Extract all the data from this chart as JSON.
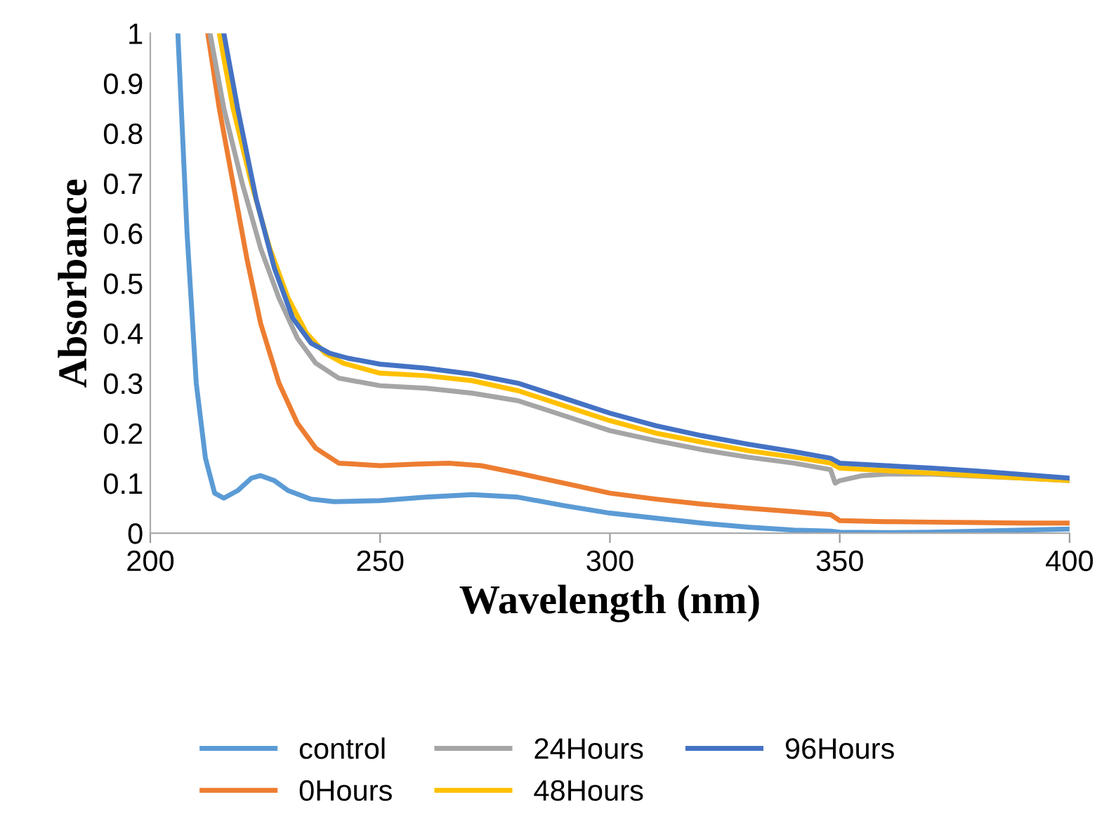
{
  "chart_data": {
    "type": "line",
    "xlabel": "Wavelength (nm)",
    "ylabel": "Absorbance",
    "xlim": [
      200,
      400
    ],
    "ylim": [
      0,
      1
    ],
    "xticks": [
      200,
      250,
      300,
      350,
      400
    ],
    "yticks": [
      0,
      0.1,
      0.2,
      0.3,
      0.4,
      0.5,
      0.6,
      0.7,
      0.8,
      0.9,
      1
    ],
    "grid": false,
    "legend": "bottom",
    "marker": "none",
    "line_style": "solid",
    "series": [
      {
        "name": "control",
        "color": "#5b9bd5",
        "x": [
          206,
          208,
          210,
          212,
          214,
          216,
          219,
          222,
          224,
          227,
          230,
          235,
          240,
          250,
          260,
          270,
          280,
          290,
          300,
          310,
          320,
          330,
          340,
          348,
          350,
          360,
          370,
          380,
          390,
          400
        ],
        "values": [
          1,
          0.6,
          0.3,
          0.15,
          0.08,
          0.07,
          0.085,
          0.11,
          0.115,
          0.105,
          0.085,
          0.068,
          0.063,
          0.065,
          0.072,
          0.077,
          0.072,
          0.055,
          0.04,
          0.03,
          0.02,
          0.012,
          0.006,
          0.004,
          0.002,
          0.001,
          0.002,
          0.004,
          0.006,
          0.008
        ]
      },
      {
        "name": "0Hours",
        "color": "#ed7d31",
        "x": [
          212.5,
          215,
          218,
          221,
          224,
          228,
          232,
          236,
          241,
          250,
          258,
          265,
          272,
          280,
          290,
          300,
          310,
          320,
          330,
          340,
          348,
          350,
          360,
          370,
          380,
          390,
          400
        ],
        "values": [
          1,
          0.85,
          0.7,
          0.55,
          0.42,
          0.3,
          0.22,
          0.17,
          0.14,
          0.135,
          0.138,
          0.14,
          0.135,
          0.12,
          0.1,
          0.08,
          0.068,
          0.058,
          0.05,
          0.043,
          0.037,
          0.025,
          0.023,
          0.022,
          0.021,
          0.02,
          0.02
        ]
      },
      {
        "name": "24Hours",
        "color": "#a5a5a5",
        "x": [
          213,
          216,
          220,
          224,
          228,
          232,
          236,
          241,
          250,
          260,
          270,
          280,
          290,
          300,
          310,
          320,
          330,
          340,
          348,
          349,
          350,
          355,
          360,
          370,
          380,
          390,
          400
        ],
        "values": [
          1,
          0.85,
          0.7,
          0.57,
          0.47,
          0.39,
          0.34,
          0.31,
          0.295,
          0.29,
          0.28,
          0.265,
          0.235,
          0.205,
          0.185,
          0.167,
          0.152,
          0.14,
          0.127,
          0.1,
          0.105,
          0.115,
          0.118,
          0.118,
          0.114,
          0.11,
          0.105
        ]
      },
      {
        "name": "48Hours",
        "color": "#ffc000",
        "x": [
          215,
          218,
          222,
          226,
          230,
          234,
          238,
          242,
          250,
          260,
          270,
          280,
          290,
          300,
          310,
          320,
          330,
          340,
          348,
          350,
          360,
          370,
          380,
          390,
          400
        ],
        "values": [
          1,
          0.85,
          0.7,
          0.57,
          0.47,
          0.4,
          0.36,
          0.34,
          0.32,
          0.315,
          0.305,
          0.285,
          0.255,
          0.225,
          0.2,
          0.182,
          0.165,
          0.152,
          0.14,
          0.13,
          0.125,
          0.12,
          0.115,
          0.11,
          0.105
        ]
      },
      {
        "name": "96Hours",
        "color": "#4472c4",
        "x": [
          216,
          219,
          223,
          227,
          231,
          235,
          239,
          243,
          250,
          260,
          270,
          280,
          290,
          300,
          310,
          320,
          330,
          340,
          348,
          350,
          360,
          370,
          380,
          390,
          400
        ],
        "values": [
          1,
          0.85,
          0.67,
          0.53,
          0.43,
          0.38,
          0.36,
          0.35,
          0.338,
          0.33,
          0.318,
          0.3,
          0.27,
          0.24,
          0.215,
          0.195,
          0.178,
          0.163,
          0.15,
          0.14,
          0.135,
          0.13,
          0.124,
          0.117,
          0.11
        ]
      }
    ]
  }
}
